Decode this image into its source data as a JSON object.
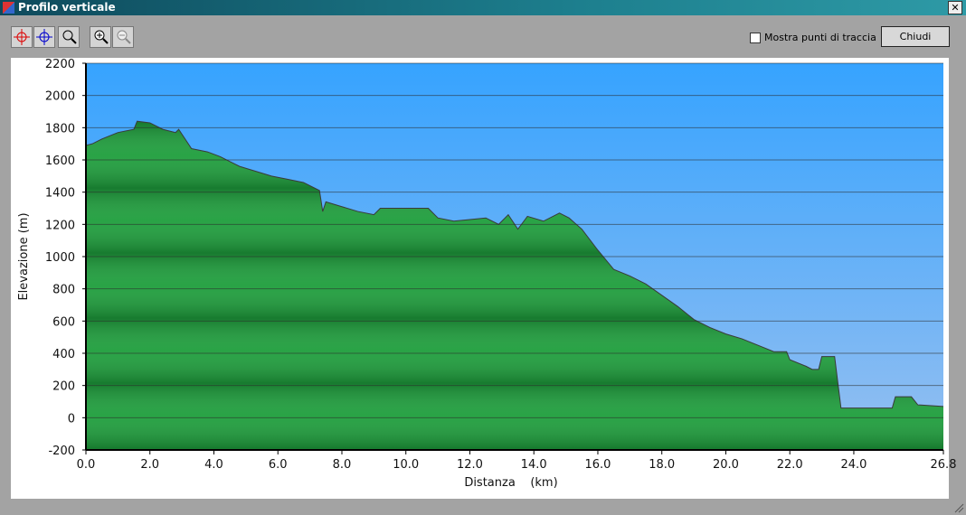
{
  "window": {
    "title": "Profilo verticale",
    "checkbox_label": "Mostra punti di traccia",
    "close_button": "Chiudi"
  },
  "chart_data": {
    "type": "area",
    "x_label": "Distanza    (km)",
    "y_label": "Elevazione (m)",
    "x": [
      0,
      0.2,
      0.5,
      1.0,
      1.5,
      1.6,
      2.0,
      2.4,
      2.8,
      2.9,
      3.3,
      3.8,
      4.2,
      4.5,
      4.8,
      5.3,
      5.8,
      6.3,
      6.8,
      7.3,
      7.4,
      7.5,
      8.0,
      8.5,
      9.0,
      9.2,
      10.7,
      11.0,
      11.5,
      12.0,
      12.5,
      12.9,
      13.2,
      13.5,
      13.8,
      14.3,
      14.8,
      15.1,
      15.5,
      16.0,
      16.5,
      17.0,
      17.5,
      18.0,
      18.5,
      19.0,
      19.5,
      20.0,
      20.5,
      21.0,
      21.5,
      21.9,
      22.0,
      22.5,
      22.7,
      22.9,
      23.0,
      23.4,
      23.6,
      25.2,
      25.3,
      25.8,
      26.0,
      26.8
    ],
    "values": [
      1690,
      1700,
      1730,
      1770,
      1790,
      1840,
      1830,
      1790,
      1770,
      1790,
      1670,
      1650,
      1620,
      1590,
      1560,
      1530,
      1500,
      1480,
      1460,
      1410,
      1280,
      1340,
      1310,
      1280,
      1260,
      1300,
      1300,
      1240,
      1220,
      1230,
      1240,
      1200,
      1260,
      1170,
      1250,
      1220,
      1270,
      1240,
      1170,
      1040,
      920,
      880,
      830,
      760,
      690,
      610,
      560,
      520,
      490,
      450,
      410,
      410,
      360,
      320,
      300,
      300,
      380,
      380,
      60,
      60,
      130,
      130,
      80,
      70
    ],
    "color": "#1e9e3c",
    "xlim": [
      0,
      26.8
    ],
    "ylim": [
      -200,
      2200
    ],
    "xticks": [
      {
        "value": 0,
        "label": "0.0"
      },
      {
        "value": 2,
        "label": "2.0"
      },
      {
        "value": 4,
        "label": "4.0"
      },
      {
        "value": 6,
        "label": "6.0"
      },
      {
        "value": 8,
        "label": "8.0"
      },
      {
        "value": 10,
        "label": "10.0"
      },
      {
        "value": 12,
        "label": "12.0"
      },
      {
        "value": 14,
        "label": "14.0"
      },
      {
        "value": 16,
        "label": "16.0"
      },
      {
        "value": 18,
        "label": "18.0"
      },
      {
        "value": 20,
        "label": "20.0"
      },
      {
        "value": 22,
        "label": "22.0"
      },
      {
        "value": 24,
        "label": "24.0"
      },
      26.8
    ],
    "yticks": [
      -200,
      0,
      200,
      400,
      600,
      800,
      1000,
      1200,
      1400,
      1600,
      1800,
      2000,
      2200
    ],
    "grid": true
  }
}
